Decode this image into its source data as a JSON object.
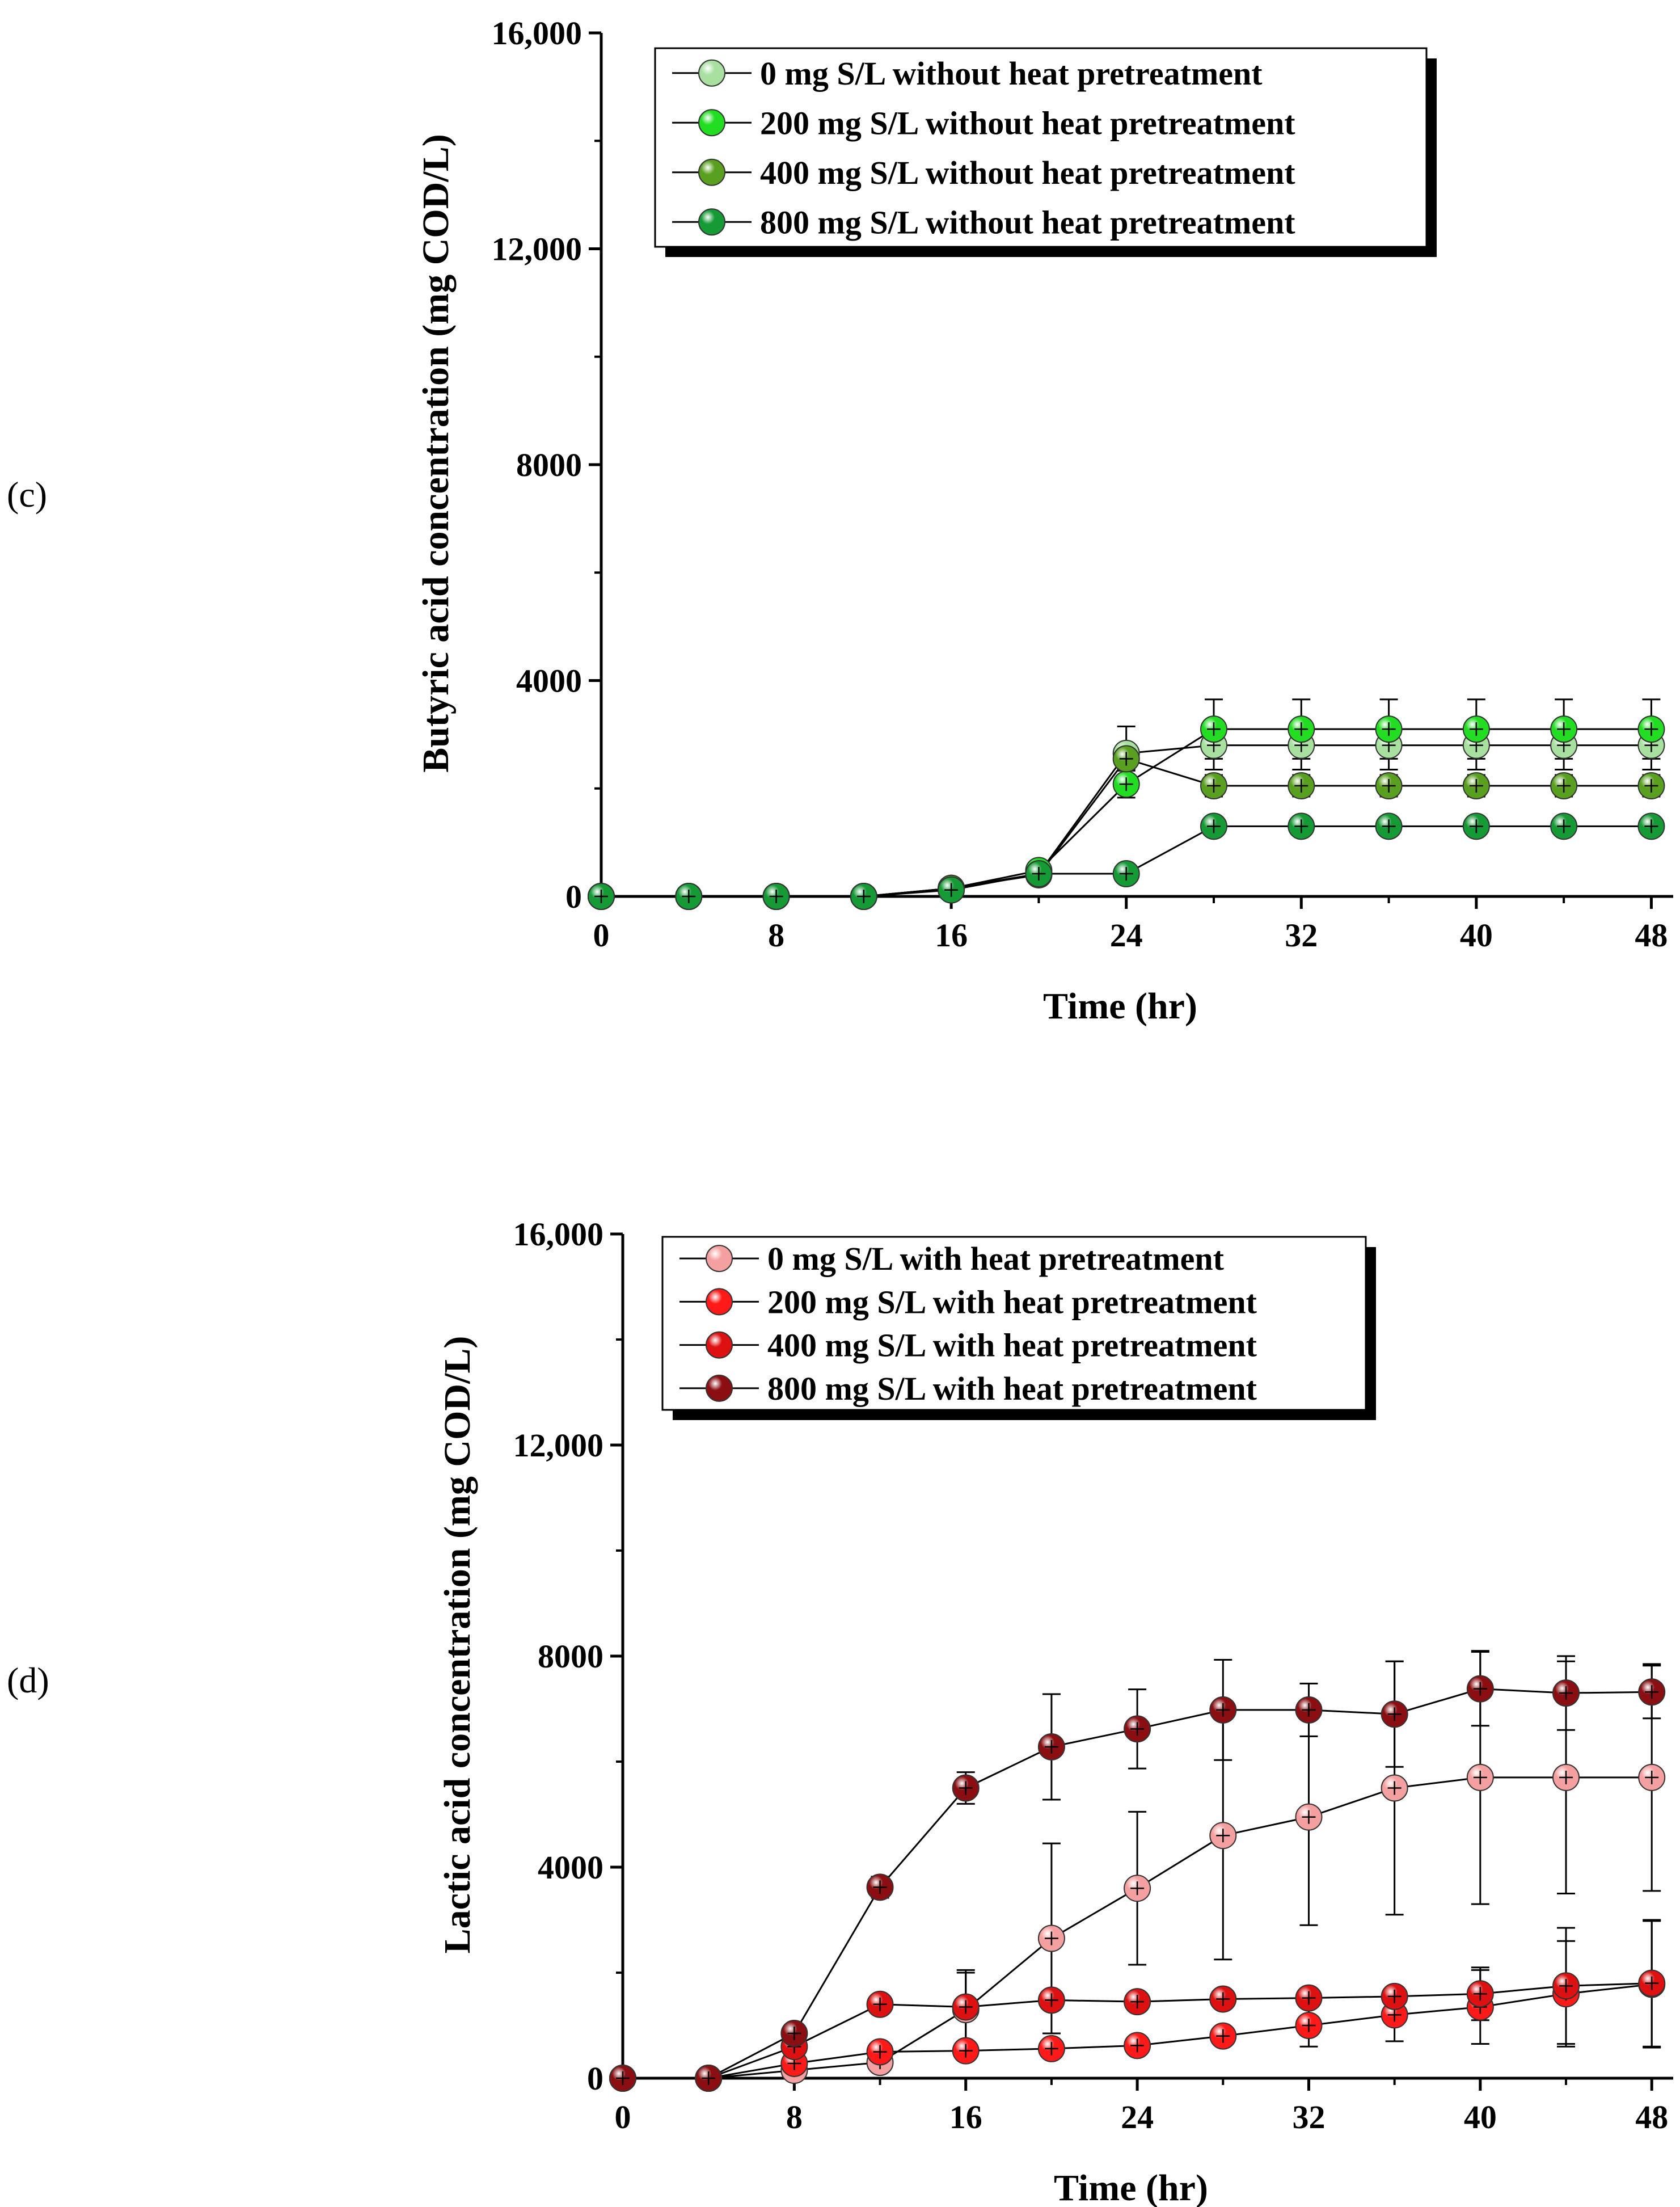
{
  "chart_data": [
    {
      "panel_label": "(c)",
      "type": "line",
      "title": "",
      "xlabel": "Time (hr)",
      "ylabel": "Butyric acid concentration (mg COD/L)",
      "xlim": [
        0,
        49
      ],
      "ylim": [
        0,
        16000
      ],
      "xticks": [
        0,
        8,
        16,
        24,
        32,
        40,
        48
      ],
      "xtick_labels": [
        "0",
        "8",
        "16",
        "24",
        "32",
        "40",
        "48"
      ],
      "yticks": [
        0,
        4000,
        8000,
        12000,
        16000
      ],
      "ytick_labels": [
        "0",
        "4000",
        "8000",
        "12,000",
        "16,000"
      ],
      "x": [
        0,
        4,
        8,
        12,
        16,
        20,
        24,
        28,
        32,
        36,
        40,
        44,
        48
      ],
      "series": [
        {
          "name": "0 mg S/L without heat pretreatment",
          "color": "#a8e0a0",
          "values": [
            0,
            0,
            0,
            0,
            150,
            420,
            2650,
            2800,
            2800,
            2800,
            2800,
            2800,
            2800
          ],
          "errors": [
            0,
            0,
            0,
            0,
            50,
            80,
            500,
            450,
            450,
            450,
            450,
            450,
            450
          ]
        },
        {
          "name": "200 mg S/L without heat pretreatment",
          "color": "#22dd22",
          "values": [
            0,
            0,
            0,
            0,
            150,
            480,
            2080,
            3100,
            3100,
            3100,
            3100,
            3100,
            3100
          ],
          "errors": [
            0,
            0,
            0,
            0,
            50,
            80,
            250,
            550,
            550,
            550,
            550,
            550,
            550
          ]
        },
        {
          "name": "400 mg S/L without heat pretreatment",
          "color": "#5aa020",
          "values": [
            0,
            0,
            0,
            0,
            150,
            400,
            2550,
            2050,
            2050,
            2050,
            2050,
            2050,
            2050
          ],
          "errors": [
            0,
            0,
            0,
            0,
            50,
            80,
            200,
            200,
            200,
            200,
            200,
            200,
            200
          ]
        },
        {
          "name": "800 mg S/L without heat pretreatment",
          "color": "#159a35",
          "values": [
            0,
            0,
            0,
            0,
            120,
            420,
            420,
            1300,
            1300,
            1300,
            1300,
            1300,
            1300
          ],
          "errors": [
            0,
            0,
            0,
            0,
            40,
            80,
            60,
            150,
            150,
            150,
            150,
            150,
            150
          ]
        }
      ],
      "legend_position": "top-left"
    },
    {
      "panel_label": "(d)",
      "type": "line",
      "title": "",
      "xlabel": "Time (hr)",
      "ylabel": "Lactic acid concentration (mg COD/L)",
      "xlim": [
        0,
        49
      ],
      "ylim": [
        0,
        16000
      ],
      "xticks": [
        0,
        8,
        16,
        24,
        32,
        40,
        48
      ],
      "xtick_labels": [
        "0",
        "8",
        "16",
        "24",
        "32",
        "40",
        "48"
      ],
      "yticks": [
        0,
        4000,
        8000,
        12000,
        16000
      ],
      "ytick_labels": [
        "0",
        "4000",
        "8000",
        "12,000",
        "16,000"
      ],
      "x": [
        0,
        4,
        8,
        12,
        16,
        20,
        24,
        28,
        32,
        36,
        40,
        44,
        48
      ],
      "series": [
        {
          "name": "0 mg S/L with heat pretreatment",
          "color": "#f5a0a0",
          "values": [
            0,
            0,
            150,
            300,
            1300,
            2650,
            3600,
            4600,
            4950,
            5500,
            5700,
            5700,
            5700
          ],
          "errors": [
            0,
            0,
            80,
            150,
            700,
            1800,
            1450,
            2350,
            2050,
            2400,
            2400,
            2200,
            2150
          ]
        },
        {
          "name": "200 mg S/L with heat pretreatment",
          "color": "#ff1a1a",
          "values": [
            0,
            0,
            280,
            500,
            520,
            560,
            620,
            800,
            1000,
            1200,
            1350,
            1600,
            1780
          ],
          "errors": [
            0,
            0,
            80,
            100,
            100,
            100,
            120,
            150,
            400,
            500,
            700,
            1000,
            1200
          ]
        },
        {
          "name": "400 mg S/L with heat pretreatment",
          "color": "#dd1111",
          "values": [
            0,
            0,
            600,
            1400,
            1350,
            1480,
            1450,
            1500,
            1520,
            1550,
            1600,
            1750,
            1800
          ],
          "errors": [
            0,
            0,
            120,
            150,
            700,
            150,
            150,
            150,
            150,
            150,
            500,
            1100,
            1200
          ]
        },
        {
          "name": "800 mg S/L with heat pretreatment",
          "color": "#8b0f12",
          "values": [
            0,
            0,
            850,
            3620,
            5500,
            6280,
            6620,
            6980,
            6980,
            6900,
            7380,
            7300,
            7320
          ],
          "errors": [
            0,
            0,
            150,
            200,
            300,
            1000,
            750,
            950,
            500,
            1000,
            700,
            700,
            500
          ]
        }
      ],
      "legend_position": "top-left"
    }
  ]
}
